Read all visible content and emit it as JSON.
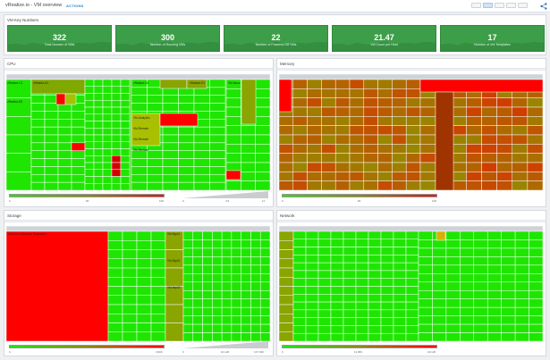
{
  "header": {
    "title": "vRealize.io - VM overview",
    "actions_label": "ACTIONS"
  },
  "key_numbers": {
    "title": "VM Key Numbers",
    "tiles": [
      {
        "value": "322",
        "label": "Total Number of VMs"
      },
      {
        "value": "300",
        "label": "Number of Running VMs"
      },
      {
        "value": "22",
        "label": "Number of Powered Off VMs"
      },
      {
        "value": "21.47",
        "label": "VM Count per Host"
      },
      {
        "value": "17",
        "label": "Number of VM Templates"
      }
    ]
  },
  "panels": {
    "cpu": {
      "title": "CPU",
      "color_min": "0",
      "color_mid": "50",
      "color_max": "100",
      "size_ticks": [
        "0",
        "4.5",
        "11"
      ],
      "labels": [
        "vRealize-C1",
        "vRealize-A1",
        "vRealize-B2",
        "vRealize-D4",
        "vRealize-E1",
        "VM-Nano",
        "VM-Analytics",
        "VM-Remote",
        "VM-Remote",
        "VM-Remote"
      ]
    },
    "memory": {
      "title": "Memory",
      "color_min": "0",
      "color_mid": "50",
      "color_max": "100"
    },
    "storage": {
      "title": "Storage",
      "color_min": "0",
      "color_mid": "",
      "color_max": "3,900",
      "size_ticks": [
        "0",
        "10,120",
        "137,430"
      ],
      "labels": [
        "VM-DC01 Windows Replicated",
        "VM-Ntp01",
        "VM-Ntp02",
        "VM-Ntp03"
      ]
    },
    "network": {
      "title": "Network",
      "color_min": "0",
      "color_mid": "11,684",
      "color_max": "22,120"
    }
  },
  "colors": {
    "green": "#1ee600",
    "red": "#ff0000",
    "olive": "#8aa400",
    "tile_green": "#3d9e4a"
  },
  "icons": [
    "share-icon"
  ]
}
